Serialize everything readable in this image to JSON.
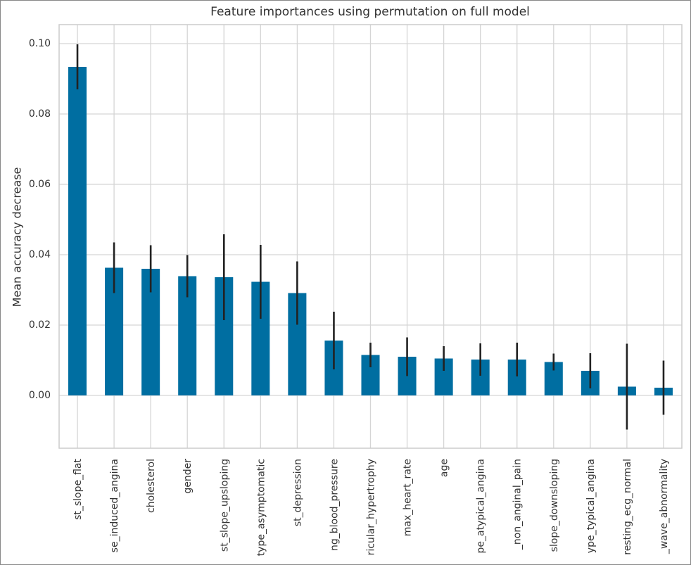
{
  "chart_data": {
    "type": "bar",
    "title": "Feature importances using permutation on full model",
    "y_label": "Mean accuracy decrease",
    "categories": [
      "st_slope_flat",
      "se_induced_angina",
      "cholesterol",
      "gender",
      "st_slope_upsloping",
      "type_asymptomatic",
      "st_depression",
      "ng_blood_pressure",
      "ricular_hypertrophy",
      "max_heart_rate",
      "age",
      "pe_atypical_angina",
      "_non_anginal_pain",
      "slope_downsloping",
      "ype_typical_angina",
      "resting_ecg_normal",
      "_wave_abnormality"
    ],
    "values": [
      0.0934,
      0.0363,
      0.036,
      0.0339,
      0.0336,
      0.0323,
      0.0291,
      0.0156,
      0.0115,
      0.011,
      0.0105,
      0.0102,
      0.0102,
      0.0095,
      0.007,
      0.0025,
      0.0022
    ],
    "errors": [
      0.0064,
      0.0072,
      0.0067,
      0.006,
      0.0122,
      0.0105,
      0.009,
      0.0082,
      0.0035,
      0.0055,
      0.0035,
      0.0046,
      0.0048,
      0.0024,
      0.005,
      0.0122,
      0.0077
    ],
    "color": "#006ea1",
    "ylim": [
      -0.015,
      0.1054
    ],
    "yticks": [
      {
        "value": 0,
        "label": "0.00"
      },
      {
        "value": 0.02,
        "label": "0.02"
      },
      {
        "value": 0.04,
        "label": "0.04"
      },
      {
        "value": 0.06,
        "label": "0.06"
      },
      {
        "value": 0.08,
        "label": "0.08"
      },
      {
        "value": 0.1,
        "label": "0.10"
      }
    ],
    "grid": true
  }
}
